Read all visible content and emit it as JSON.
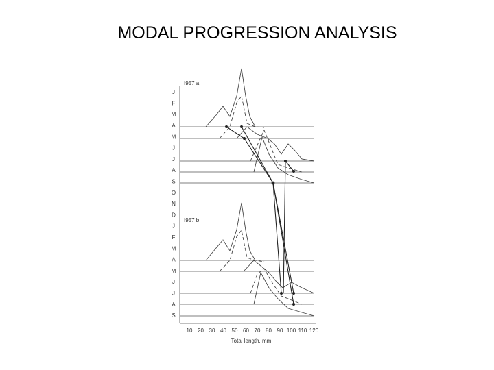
{
  "title": "MODAL PROGRESSION ANALYSIS",
  "figure": {
    "panels": [
      "I957 a",
      "I957 b"
    ],
    "months": [
      "J",
      "F",
      "M",
      "A",
      "M",
      "J",
      "J",
      "A",
      "S",
      "O",
      "N",
      "D",
      "J",
      "F",
      "M",
      "A",
      "M",
      "J",
      "J",
      "A",
      "S"
    ],
    "xticks": [
      "10",
      "20",
      "30",
      "40",
      "50",
      "60",
      "70",
      "80",
      "90",
      "100",
      "110",
      "120"
    ],
    "x_axis_label": "Total length, mm"
  }
}
